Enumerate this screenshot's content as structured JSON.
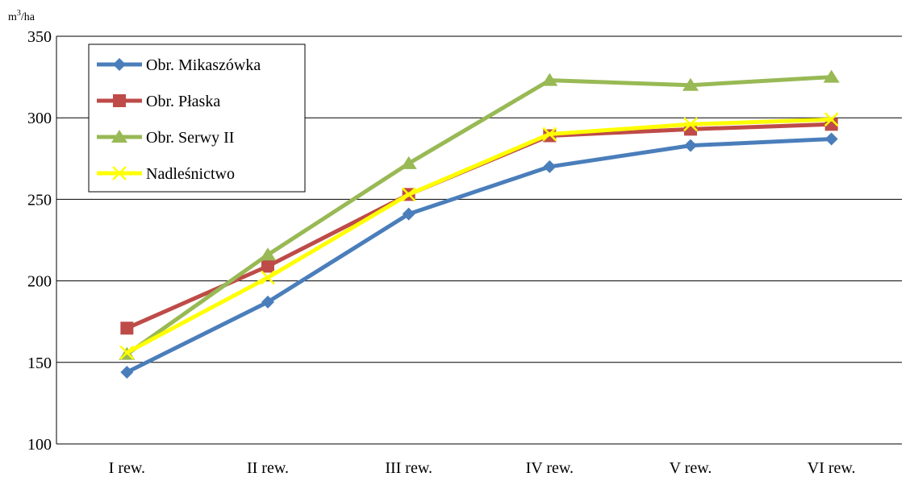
{
  "chart_data": {
    "type": "line",
    "unit_label": {
      "base": "m",
      "sup": "3",
      "rest": "/ha"
    },
    "categories": [
      "I rew.",
      "II rew.",
      "III rew.",
      "IV rew.",
      "V rew.",
      "VI rew."
    ],
    "ylim": [
      100,
      350
    ],
    "yticks": [
      100,
      150,
      200,
      250,
      300,
      350
    ],
    "grid": true,
    "legend_position": "top-left",
    "series": [
      {
        "name": "Obr. Mikaszówka",
        "color": "#4A7EBB",
        "marker": "diamond",
        "values": [
          144,
          187,
          241,
          270,
          283,
          287
        ]
      },
      {
        "name": "Obr. Płaska",
        "color": "#BE4B48",
        "marker": "square",
        "values": [
          171,
          209,
          253,
          289,
          293,
          296
        ]
      },
      {
        "name": "Obr. Serwy II",
        "color": "#98B954",
        "marker": "triangle",
        "values": [
          155,
          216,
          272,
          323,
          320,
          325
        ]
      },
      {
        "name": "Nadleśnictwo",
        "color": "#FFFF00",
        "marker": "x",
        "values": [
          156,
          202,
          253,
          290,
          296,
          299
        ]
      }
    ]
  }
}
